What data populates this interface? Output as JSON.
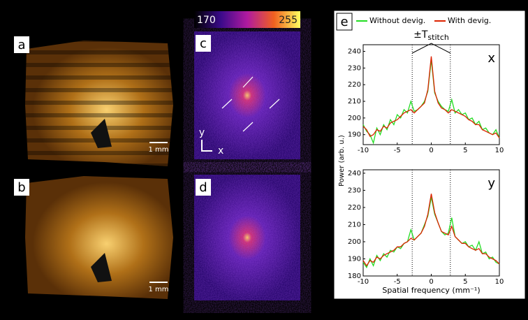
{
  "figure": {
    "labels": {
      "a": "a",
      "b": "b",
      "c": "c",
      "d": "d",
      "e": "e"
    },
    "scale_bar_a": "1 mm",
    "scale_bar_b": "1 mm",
    "axis_y": "y",
    "axis_x": "x",
    "colorbar": {
      "min_label": "170",
      "max_label": "255"
    }
  },
  "chart_data": {
    "type": "line",
    "xlabel": "Spatial frequency (mm⁻¹)",
    "ylabel": "Power (arb. u.)",
    "annotation": {
      "main": "±T",
      "sub": "stitch"
    },
    "vlines": [
      -2.8,
      2.8
    ],
    "x": [
      -10,
      -9.5,
      -9,
      -8.5,
      -8,
      -7.5,
      -7,
      -6.5,
      -6,
      -5.5,
      -5,
      -4.5,
      -4,
      -3.5,
      -3,
      -2.5,
      -2,
      -1.5,
      -1,
      -0.5,
      0,
      0.5,
      1,
      1.5,
      2,
      2.5,
      3,
      3.5,
      4,
      4.5,
      5,
      5.5,
      6,
      6.5,
      7,
      7.5,
      8,
      8.5,
      9,
      9.5,
      10
    ],
    "xlim": [
      -10,
      10
    ],
    "xticks": [
      -10,
      -5,
      0,
      5,
      10
    ],
    "legend": [
      {
        "name": "Without devig.",
        "color": "#22dd22"
      },
      {
        "name": "With devig.",
        "color": "#dd2200"
      }
    ],
    "panels": [
      {
        "label": "x",
        "ylim": [
          184,
          244
        ],
        "yticks": [
          190,
          200,
          210,
          220,
          230,
          240
        ],
        "series": [
          {
            "values": [
              196,
              192,
              190,
              185,
              194,
              190,
              196,
              193,
              199,
              196,
              202,
              200,
              205,
              203,
              210,
              204,
              205,
              207,
              210,
              216,
              235,
              215,
              210,
              207,
              205,
              204,
              211,
              203,
              205,
              202,
              203,
              199,
              200,
              196,
              198,
              193,
              194,
              191,
              190,
              193,
              188
            ]
          },
          {
            "values": [
              195,
              193,
              189,
              190,
              193,
              192,
              195,
              194,
              197,
              198,
              199,
              201,
              203,
              204,
              205,
              203,
              205,
              207,
              209,
              217,
              237,
              216,
              209,
              206,
              205,
              203,
              205,
              204,
              203,
              202,
              201,
              199,
              198,
              196,
              196,
              193,
              192,
              191,
              190,
              191,
              188
            ]
          }
        ]
      },
      {
        "label": "y",
        "ylim": [
          180,
          242
        ],
        "yticks": [
          180,
          190,
          200,
          210,
          220,
          230,
          240
        ],
        "series": [
          {
            "values": [
              188,
              185,
              190,
              186,
              192,
              189,
              193,
              191,
              195,
              194,
              197,
              196,
              199,
              200,
              207,
              201,
              203,
              205,
              210,
              215,
              226,
              216,
              211,
              206,
              204,
              205,
              214,
              203,
              201,
              199,
              200,
              197,
              198,
              195,
              200,
              193,
              194,
              190,
              191,
              188,
              187
            ]
          },
          {
            "values": [
              189,
              186,
              189,
              188,
              191,
              190,
              192,
              193,
              194,
              195,
              197,
              197,
              199,
              200,
              202,
              201,
              203,
              205,
              209,
              216,
              228,
              217,
              211,
              206,
              205,
              204,
              209,
              203,
              201,
              199,
              199,
              197,
              196,
              195,
              196,
              193,
              193,
              191,
              190,
              189,
              187
            ]
          }
        ]
      }
    ]
  }
}
